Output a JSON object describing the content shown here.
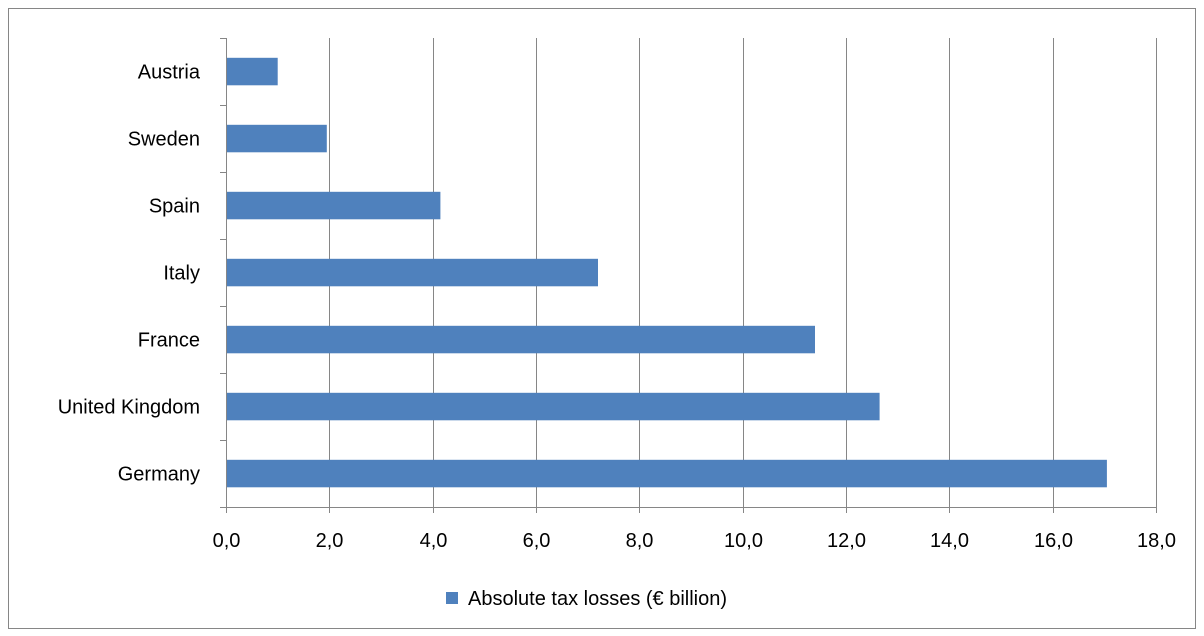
{
  "chart_data": {
    "type": "bar",
    "orientation": "horizontal",
    "categories": [
      "Austria",
      "Sweden",
      "Spain",
      "Italy",
      "France",
      "United Kingdom",
      "Germany"
    ],
    "series": [
      {
        "name": "Absolute tax losses (€ billion)",
        "values": [
          1.0,
          1.95,
          4.15,
          7.2,
          11.4,
          12.65,
          17.05
        ],
        "color": "#4f81bd"
      }
    ],
    "xlim": [
      0,
      18
    ],
    "xticks": [
      "0,0",
      "2,0",
      "4,0",
      "6,0",
      "8,0",
      "10,0",
      "12,0",
      "14,0",
      "16,0",
      "18,0"
    ],
    "grid": "vertical",
    "legend": "bottom-center",
    "title": "",
    "xlabel": "",
    "ylabel": ""
  },
  "colors": {
    "bar": "#4f81bd",
    "grid": "#868686",
    "axis": "#868686",
    "border": "#868686"
  }
}
